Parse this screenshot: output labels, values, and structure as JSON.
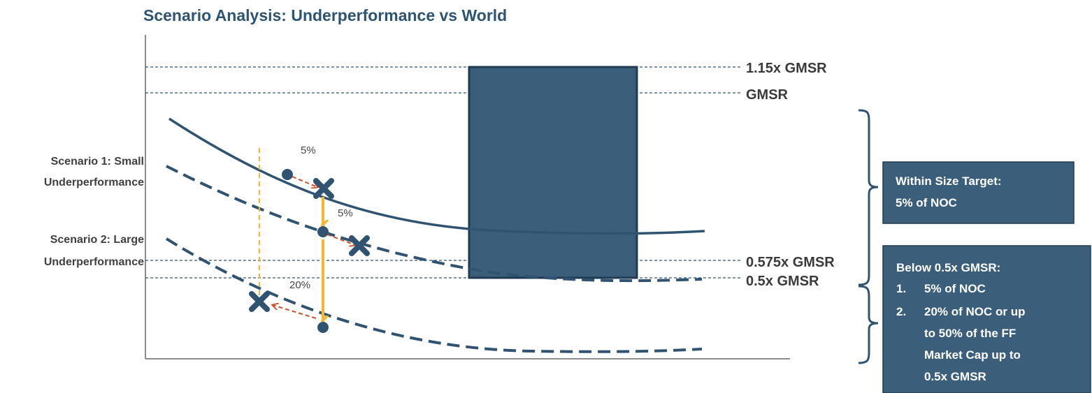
{
  "title": "Scenario Analysis: Underperformance vs World",
  "colors": {
    "title": "#2e5470",
    "primary": "#2f5370",
    "box_fill": "#3b5f7a",
    "box_border": "#1f3a52",
    "arrow_gold": "#f5b731",
    "arrow_red": "#c8502a",
    "axis": "#666666"
  },
  "reference_lines": {
    "top": "1.15x GMSR",
    "gmsr": "GMSR",
    "r0575": "0.575x GMSR",
    "r05": "0.5x GMSR"
  },
  "scenarios": {
    "s1_line1": "Scenario 1: Small",
    "s1_line2": "Underperformance",
    "s2_line1": "Scenario 2: Large",
    "s2_line2": "Underperformance"
  },
  "percent_labels": {
    "a": "5%",
    "b": "5%",
    "c": "20%"
  },
  "boxes": {
    "within": {
      "line1": "Within Size Target:",
      "line2": "5% of NOC"
    },
    "below": {
      "heading": "Below 0.5x GMSR:",
      "items": [
        {
          "num": "1.",
          "lines": [
            "5% of NOC"
          ]
        },
        {
          "num": "2.",
          "lines": [
            "20% of NOC or up",
            "to 50% of the FF",
            "Market Cap up to",
            "0.5x GMSR"
          ]
        }
      ]
    }
  },
  "icons": {
    "marker_dot": "circle-marker-icon",
    "marker_x": "x-marker-icon"
  }
}
